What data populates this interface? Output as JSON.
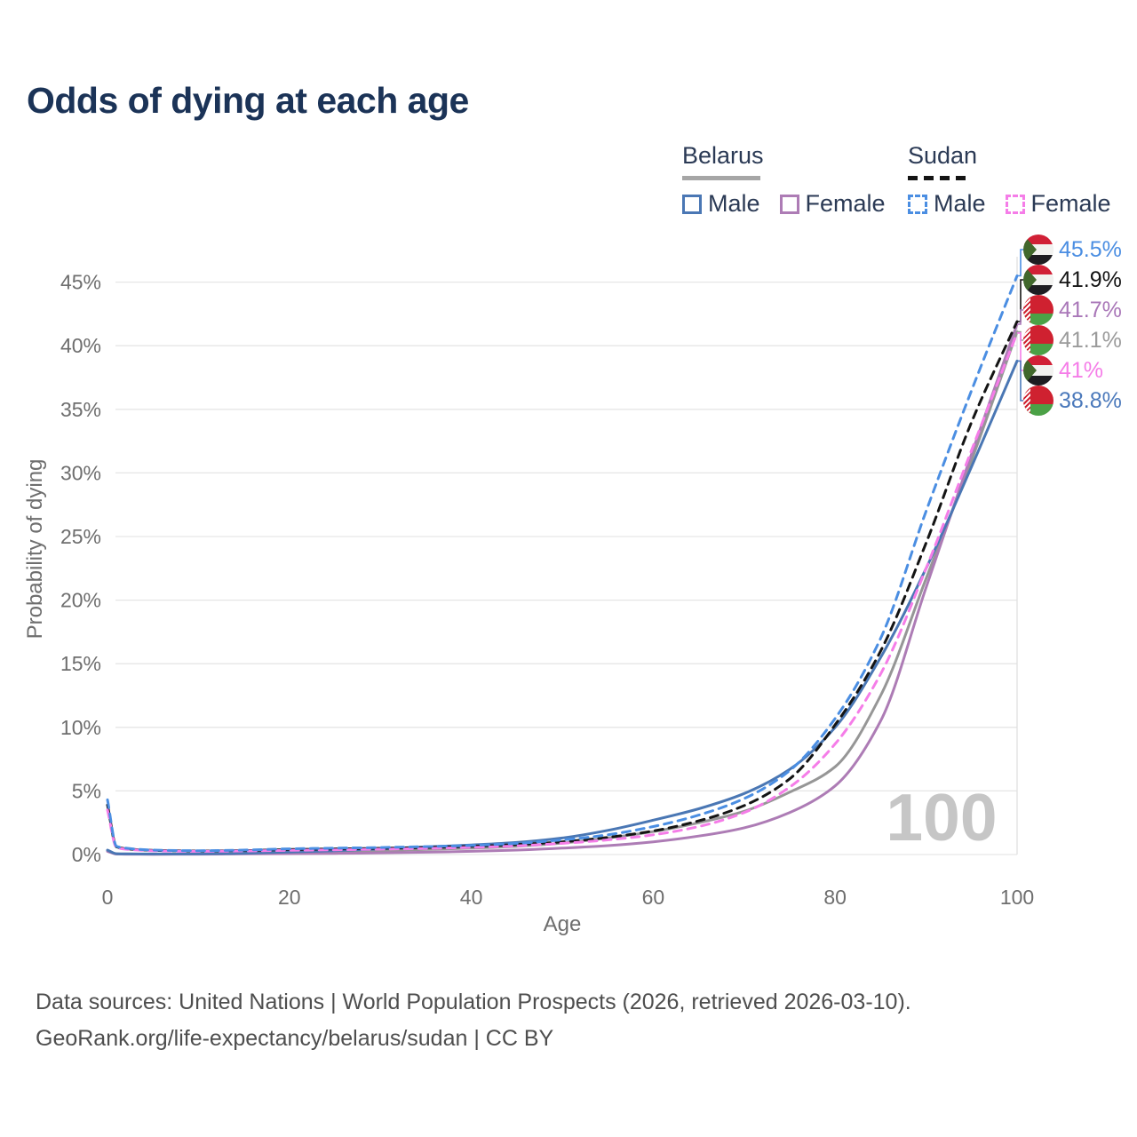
{
  "title": "Odds of dying at each age",
  "legend": {
    "groups": [
      {
        "country": "Belarus",
        "line_style": "solid",
        "items": [
          {
            "label": "Male",
            "swatch_color": "#4a77b4",
            "dashed": false
          },
          {
            "label": "Female",
            "swatch_color": "#ad7cb5",
            "dashed": false
          }
        ]
      },
      {
        "country": "Sudan",
        "line_style": "dashed",
        "items": [
          {
            "label": "Male",
            "swatch_color": "#4b8ee2",
            "dashed": true
          },
          {
            "label": "Female",
            "swatch_color": "#f57de8",
            "dashed": true
          }
        ]
      }
    ]
  },
  "chart_data": {
    "type": "line",
    "title": "Odds of dying at each age",
    "xlabel": "Age",
    "ylabel": "Probability of dying",
    "xlim": [
      0,
      100
    ],
    "ylim": [
      0,
      47
    ],
    "grid": "horizontal",
    "legend_position": "top-right",
    "x_ticks": [
      {
        "v": 0,
        "label": "0"
      },
      {
        "v": 20,
        "label": "20"
      },
      {
        "v": 40,
        "label": "40"
      },
      {
        "v": 60,
        "label": "60"
      },
      {
        "v": 80,
        "label": "80"
      },
      {
        "v": 100,
        "label": "100"
      }
    ],
    "y_ticks": [
      {
        "v": 0,
        "label": "0%"
      },
      {
        "v": 5,
        "label": "5%"
      },
      {
        "v": 10,
        "label": "10%"
      },
      {
        "v": 15,
        "label": "15%"
      },
      {
        "v": 20,
        "label": "20%"
      },
      {
        "v": 25,
        "label": "25%"
      },
      {
        "v": 30,
        "label": "30%"
      },
      {
        "v": 35,
        "label": "35%"
      },
      {
        "v": 40,
        "label": "40%"
      },
      {
        "v": 45,
        "label": "45%"
      }
    ],
    "x": [
      0,
      1,
      2,
      5,
      10,
      15,
      20,
      25,
      30,
      35,
      40,
      45,
      50,
      55,
      60,
      65,
      70,
      75,
      80,
      85,
      90,
      95,
      100
    ],
    "series": [
      {
        "name": "Belarus",
        "id": "belarus-both",
        "country": "Belarus",
        "sex": "both",
        "color": "#969696",
        "dashed": false,
        "width": 3,
        "values": [
          0.3,
          0.05,
          0.04,
          0.03,
          0.04,
          0.08,
          0.14,
          0.2,
          0.3,
          0.4,
          0.5,
          0.65,
          0.9,
          1.3,
          1.8,
          2.5,
          3.4,
          4.9,
          6.9,
          12.5,
          21.7,
          31.0,
          41.1
        ]
      },
      {
        "name": "Belarus Female",
        "id": "belarus-female",
        "country": "Belarus",
        "sex": "female",
        "color": "#ad7cb5",
        "dashed": false,
        "width": 3,
        "values": [
          0.25,
          0.04,
          0.03,
          0.02,
          0.03,
          0.05,
          0.07,
          0.09,
          0.13,
          0.18,
          0.25,
          0.35,
          0.5,
          0.7,
          1.0,
          1.45,
          2.1,
          3.3,
          5.4,
          10.5,
          21.0,
          31.5,
          41.7
        ]
      },
      {
        "name": "Belarus Male",
        "id": "belarus-male",
        "country": "Belarus",
        "sex": "male",
        "color": "#4a77b4",
        "dashed": false,
        "width": 3,
        "values": [
          0.35,
          0.06,
          0.05,
          0.04,
          0.05,
          0.1,
          0.2,
          0.3,
          0.45,
          0.6,
          0.75,
          0.95,
          1.3,
          1.9,
          2.7,
          3.6,
          4.8,
          6.7,
          10.0,
          15.5,
          22.5,
          30.5,
          38.8
        ]
      },
      {
        "name": "Sudan",
        "id": "sudan-both",
        "country": "Sudan",
        "sex": "both",
        "color": "#141414",
        "dashed": true,
        "width": 3,
        "values": [
          3.9,
          0.6,
          0.46,
          0.33,
          0.28,
          0.31,
          0.39,
          0.44,
          0.49,
          0.55,
          0.64,
          0.78,
          1.0,
          1.35,
          1.85,
          2.65,
          3.85,
          5.95,
          10.2,
          16.0,
          24.5,
          34.0,
          41.9
        ]
      },
      {
        "name": "Sudan Female",
        "id": "sudan-female",
        "country": "Sudan",
        "sex": "female",
        "color": "#f57de8",
        "dashed": true,
        "width": 3,
        "values": [
          3.5,
          0.55,
          0.42,
          0.3,
          0.25,
          0.28,
          0.33,
          0.37,
          0.42,
          0.48,
          0.56,
          0.68,
          0.88,
          1.15,
          1.55,
          2.2,
          3.3,
          5.3,
          8.7,
          14.2,
          22.5,
          31.8,
          41.0
        ]
      },
      {
        "name": "Sudan Male",
        "id": "sudan-male",
        "country": "Sudan",
        "sex": "male",
        "color": "#4b8ee2",
        "dashed": true,
        "width": 3,
        "values": [
          4.3,
          0.65,
          0.5,
          0.35,
          0.3,
          0.35,
          0.45,
          0.5,
          0.55,
          0.62,
          0.72,
          0.88,
          1.15,
          1.55,
          2.2,
          3.1,
          4.4,
          6.6,
          10.7,
          17.0,
          27.0,
          36.5,
          45.5
        ]
      }
    ],
    "end_labels": [
      {
        "label": "45.5%",
        "value": 45.5,
        "series": "Sudan Male",
        "color": "#4b8ee2",
        "flag": "sudan"
      },
      {
        "label": "41.9%",
        "value": 41.9,
        "series": "Sudan",
        "color": "#141414",
        "flag": "sudan"
      },
      {
        "label": "41.7%",
        "value": 41.7,
        "series": "Belarus Female",
        "color": "#a977b8",
        "flag": "belarus"
      },
      {
        "label": "41.1%",
        "value": 41.1,
        "series": "Belarus",
        "color": "#9b9b9b",
        "flag": "belarus"
      },
      {
        "label": "41%",
        "value": 41.0,
        "series": "Sudan Female",
        "color": "#f57de8",
        "flag": "sudan"
      },
      {
        "label": "38.8%",
        "value": 38.8,
        "series": "Belarus Male",
        "color": "#4b79bb",
        "flag": "belarus"
      }
    ],
    "hover_age_indicator": "100"
  },
  "footer": {
    "line1": "Data sources: United Nations | World Population Prospects (2026, retrieved 2026-03-10).",
    "line2": "GeoRank.org/life-expectancy/belarus/sudan | CC BY"
  }
}
